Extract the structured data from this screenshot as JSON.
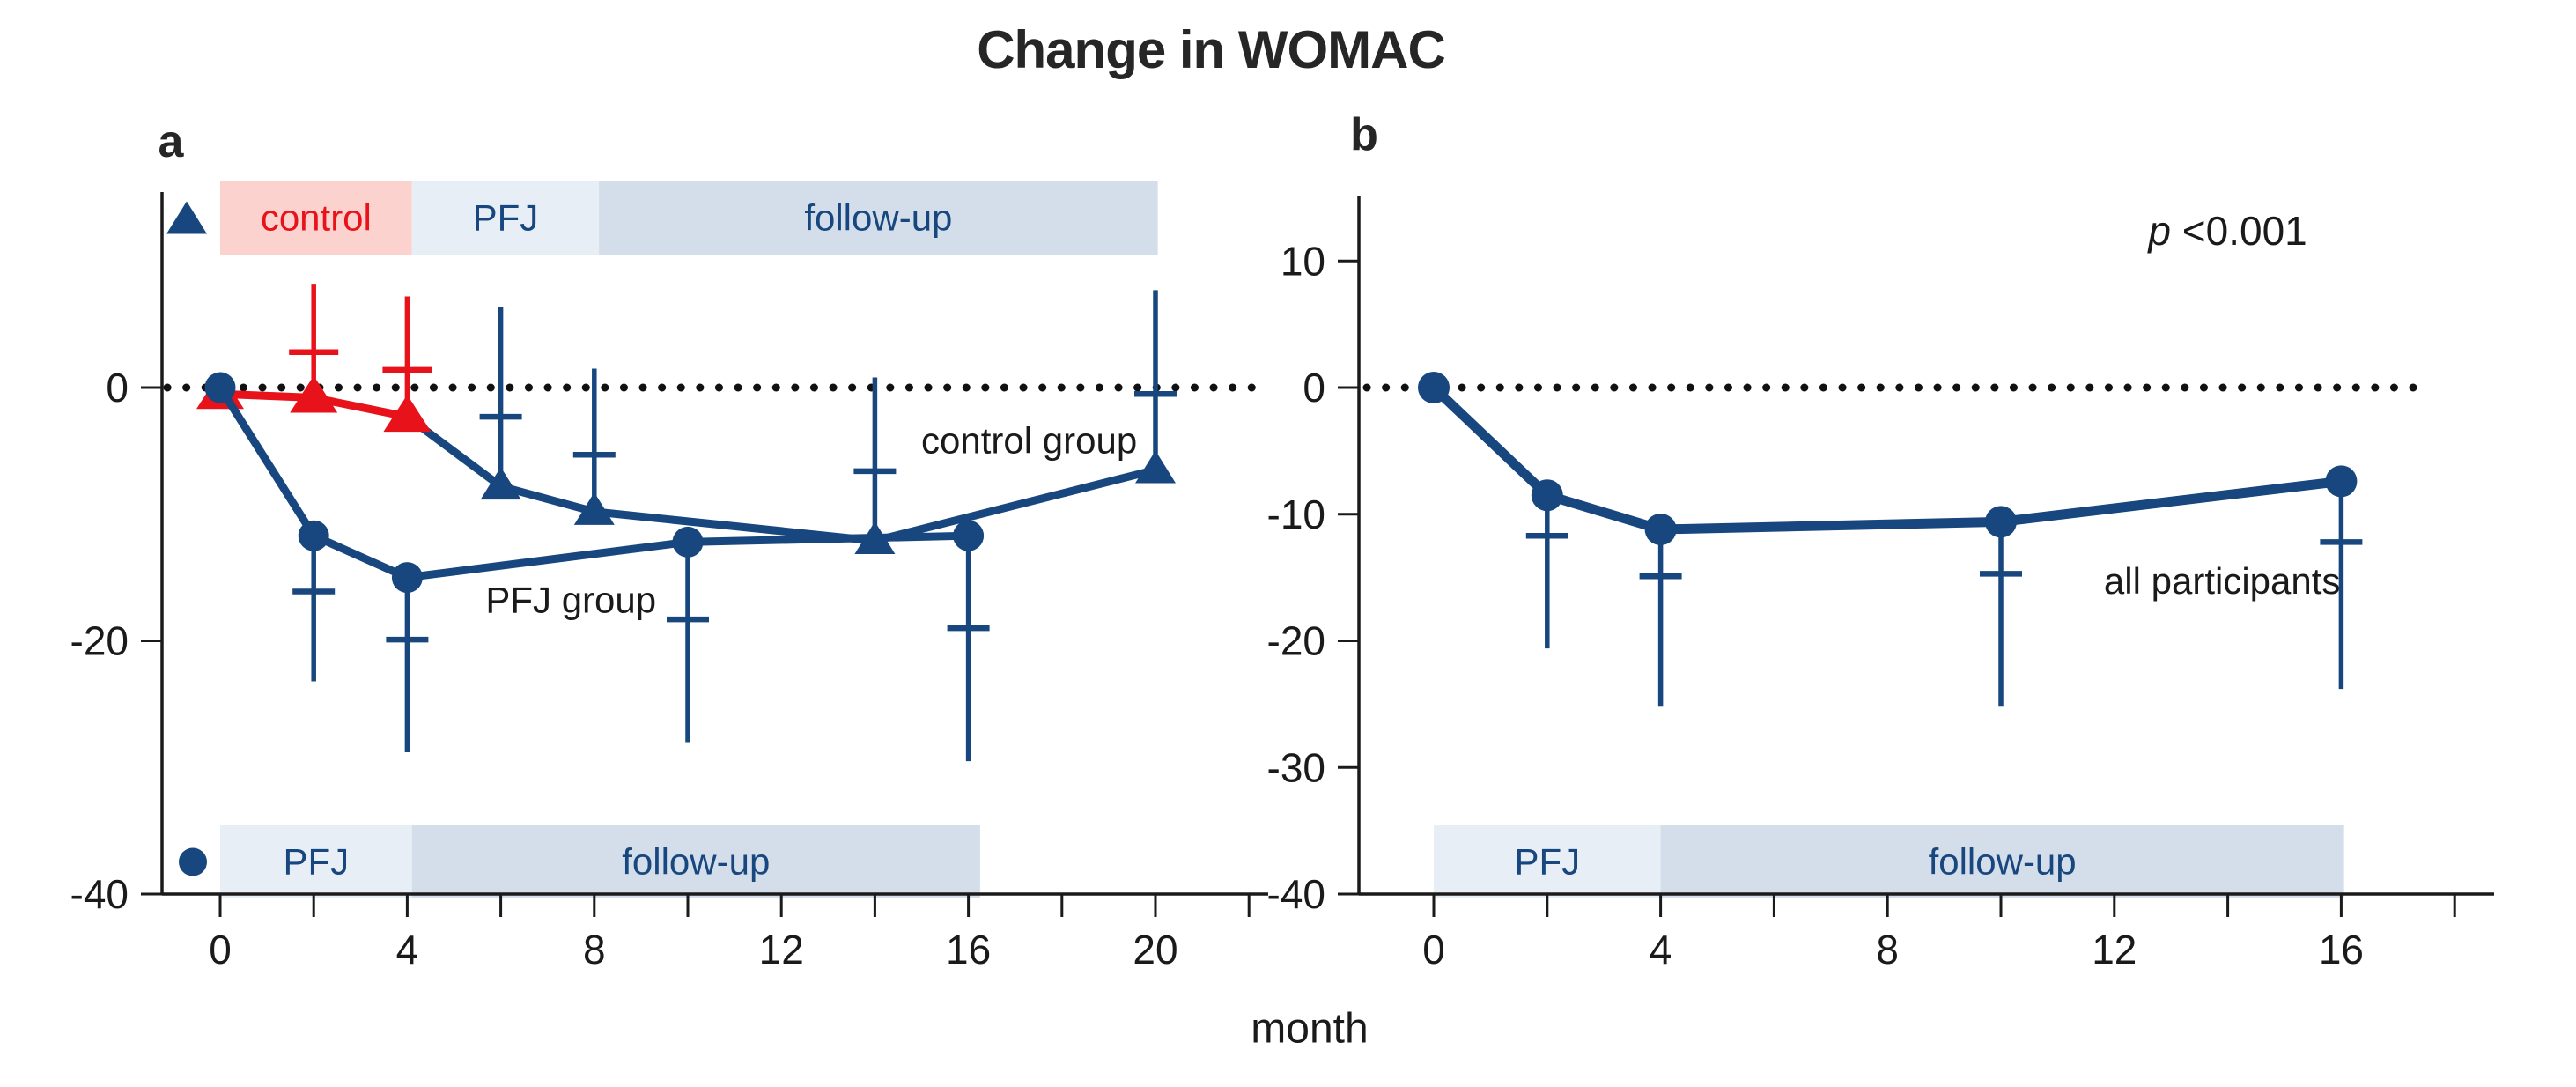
{
  "title": "Change in WOMAC",
  "x_axis_label": "month",
  "colors": {
    "navy": "#17477E",
    "red": "#E8121B",
    "pink_band": "#FBD2CE",
    "light_band": "#E8EEF5",
    "medium_band": "#D3DEEA",
    "ink": "#1A1A1A"
  },
  "chart_data": [
    {
      "panel_label": "a",
      "type": "line",
      "xlabel": "month",
      "x_tick_labels": [
        0,
        4,
        8,
        12,
        16,
        20
      ],
      "x_minor_step": 2,
      "x_max_tick": 22,
      "y_ticks": [
        0,
        -20,
        -40
      ],
      "ylim": [
        -40,
        16
      ],
      "zero_line": true,
      "top_bands": {
        "legend_marker": "triangle",
        "items": [
          {
            "label": "control",
            "from": 0,
            "to": 4.1,
            "bg": "pink_band",
            "fg": "red"
          },
          {
            "label": "PFJ",
            "from": 4.1,
            "to": 8.1,
            "bg": "light_band",
            "fg": "navy"
          },
          {
            "label": "follow-up",
            "from": 8.1,
            "to": 20.05,
            "bg": "medium_band",
            "fg": "navy"
          }
        ]
      },
      "bottom_bands": {
        "legend_marker": "circle",
        "items": [
          {
            "label": "PFJ",
            "from": 0,
            "to": 4.1,
            "bg": "light_band",
            "fg": "navy"
          },
          {
            "label": "follow-up",
            "from": 4.1,
            "to": 16.25,
            "bg": "medium_band",
            "fg": "navy"
          }
        ]
      },
      "series": [
        {
          "name": "control group",
          "marker": "triangle",
          "error_direction": "up",
          "points": [
            {
              "month": 0,
              "value": -0.5,
              "color": "red"
            },
            {
              "month": 2,
              "value": -0.8,
              "color": "red",
              "err_cap": 2.8,
              "err_tip": 8.2
            },
            {
              "month": 4,
              "value": -2.3,
              "color": "red",
              "err_cap": 1.4,
              "err_tip": 7.2
            },
            {
              "month": 6,
              "value": -7.8,
              "color": "navy",
              "err_cap": -2.3,
              "err_tip": 6.4
            },
            {
              "month": 8,
              "value": -9.8,
              "color": "navy",
              "err_cap": -5.3,
              "err_tip": 1.5
            },
            {
              "month": 14,
              "value": -12.1,
              "color": "navy",
              "err_cap": -6.6,
              "err_tip": 0.8
            },
            {
              "month": 20,
              "value": -6.5,
              "color": "navy",
              "err_cap": -0.5,
              "err_tip": 7.7
            }
          ],
          "line_segments": [
            {
              "color": "red",
              "months": [
                0,
                2,
                4
              ]
            },
            {
              "color": "navy",
              "months": [
                4,
                6,
                8,
                14,
                20
              ]
            }
          ],
          "label": {
            "text": "control group",
            "month": 17.3,
            "value": -4.2
          }
        },
        {
          "name": "PFJ group",
          "marker": "circle",
          "error_direction": "down",
          "points": [
            {
              "month": 0,
              "value": 0,
              "color": "navy"
            },
            {
              "month": 2,
              "value": -11.7,
              "color": "navy",
              "err_cap": -16.1,
              "err_tip": -23.2
            },
            {
              "month": 4,
              "value": -15,
              "color": "navy",
              "err_cap": -19.9,
              "err_tip": -28.8
            },
            {
              "month": 10,
              "value": -12.2,
              "color": "navy",
              "err_cap": -18.3,
              "err_tip": -28
            },
            {
              "month": 16,
              "value": -11.7,
              "color": "navy",
              "err_cap": -19,
              "err_tip": -29.5
            }
          ],
          "line_segments": [
            {
              "color": "navy",
              "months": [
                0,
                2,
                4,
                10,
                16
              ]
            }
          ],
          "label": {
            "text": "PFJ group",
            "month": 7.5,
            "value": -16.8
          }
        }
      ]
    },
    {
      "panel_label": "b",
      "type": "line",
      "xlabel": "month",
      "x_tick_labels": [
        0,
        4,
        8,
        12,
        16
      ],
      "x_minor_step": 2,
      "x_max_tick": 18,
      "y_ticks": [
        10,
        0,
        -10,
        -20,
        -30,
        -40
      ],
      "ylim": [
        -40,
        16
      ],
      "zero_line": true,
      "annotation": {
        "italic_part": "p",
        "text_part": " <0.001",
        "month": 14,
        "value": 12.3
      },
      "bottom_bands": {
        "items": [
          {
            "label": "PFJ",
            "from": 0,
            "to": 4,
            "bg": "light_band",
            "fg": "navy"
          },
          {
            "label": "follow-up",
            "from": 4,
            "to": 16.05,
            "bg": "medium_band",
            "fg": "navy"
          }
        ]
      },
      "series": [
        {
          "name": "all participants",
          "marker": "circle",
          "error_direction": "down",
          "points": [
            {
              "month": 0,
              "value": 0,
              "color": "navy"
            },
            {
              "month": 2,
              "value": -8.5,
              "color": "navy",
              "err_cap": -11.7,
              "err_tip": -20.6
            },
            {
              "month": 4,
              "value": -11.2,
              "color": "navy",
              "err_cap": -14.9,
              "err_tip": -25.2
            },
            {
              "month": 10,
              "value": -10.6,
              "color": "navy",
              "err_cap": -14.7,
              "err_tip": -25.2
            },
            {
              "month": 16,
              "value": -7.4,
              "color": "navy",
              "err_cap": -12.2,
              "err_tip": -23.8
            }
          ],
          "line_segments": [
            {
              "color": "navy",
              "months": [
                0,
                2,
                4,
                10,
                16
              ]
            }
          ],
          "label": {
            "text": "all participants",
            "month": 13.9,
            "value": -15.3
          }
        }
      ]
    }
  ]
}
